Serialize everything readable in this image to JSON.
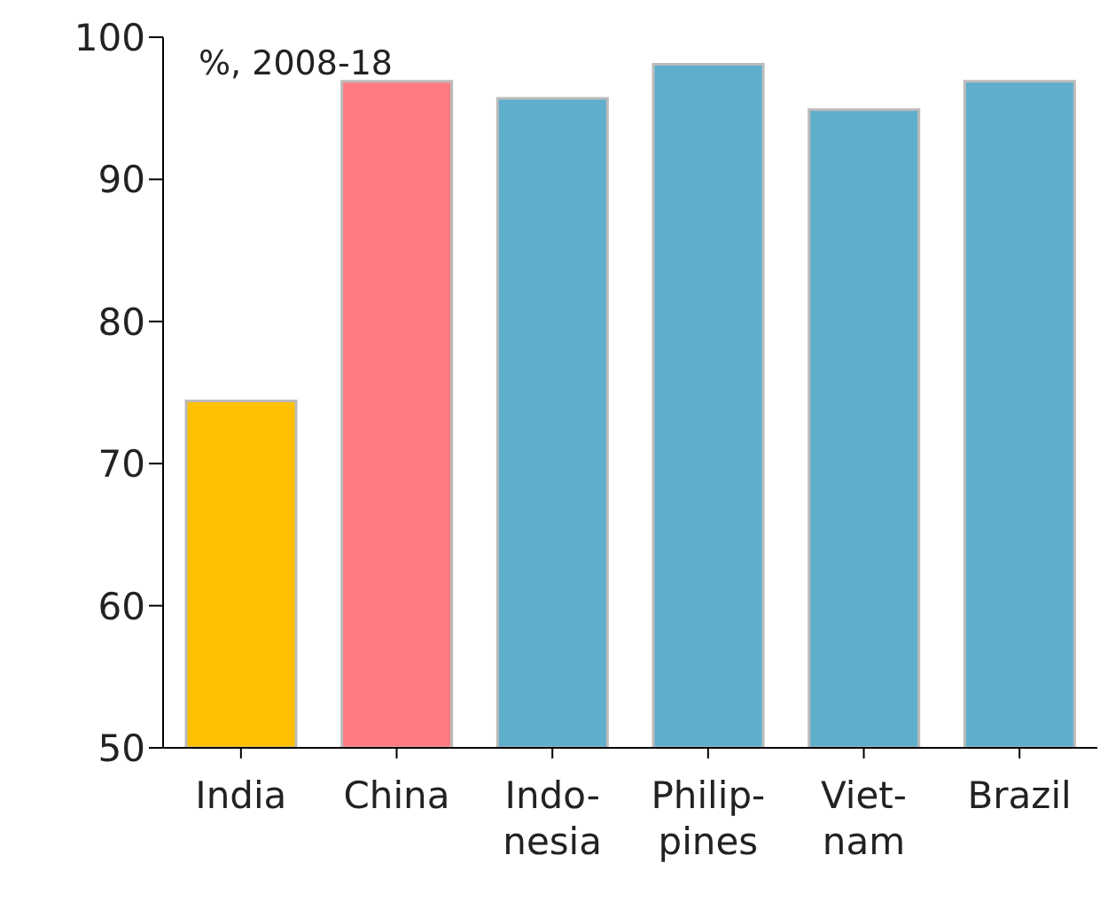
{
  "chart_data": {
    "type": "bar",
    "categories": [
      "India",
      "China",
      "Indo-\nnesia",
      "Philip-\npines",
      "Viet-\nnam",
      "Brazil"
    ],
    "values": [
      74.4,
      96.9,
      95.7,
      98.1,
      94.9,
      96.9
    ],
    "colors": [
      "#ffc000",
      "#ff7c80",
      "#5eaecc",
      "#5eaecc",
      "#5eaecc",
      "#5eaecc"
    ],
    "ylim": [
      50,
      100
    ],
    "yticks": [
      50,
      60,
      70,
      80,
      90,
      100
    ],
    "grid": false,
    "annotations": [
      "%, 2008-18"
    ]
  }
}
